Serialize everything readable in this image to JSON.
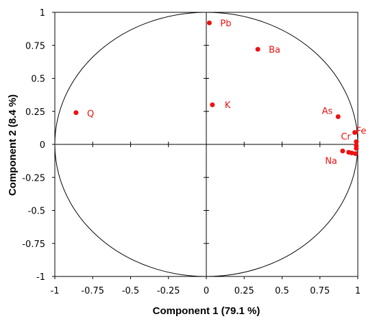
{
  "chart_data": {
    "type": "scatter",
    "xlabel": "Component 1 (79.1 %)",
    "ylabel": "Component 2 (8.4 %)",
    "xlim": [
      -1,
      1
    ],
    "ylim": [
      -1,
      1
    ],
    "x_ticks": [
      "-1",
      "-0.75",
      "-0.5",
      "-0.25",
      "0",
      "0.25",
      "0.5",
      "0.75",
      "1"
    ],
    "y_ticks": [
      "1",
      "0.75",
      "0.5",
      "0.25",
      "0",
      "-0.25",
      "-0.5",
      "-0.75",
      "-1"
    ],
    "grid": false,
    "unit_circle": true,
    "point_color": "#ee1111",
    "points": [
      {
        "label": "Pb",
        "x": 0.02,
        "y": 0.92
      },
      {
        "label": "Ba",
        "x": 0.34,
        "y": 0.72
      },
      {
        "label": "K",
        "x": 0.04,
        "y": 0.3
      },
      {
        "label": "Q",
        "x": -0.86,
        "y": 0.24
      },
      {
        "label": "As",
        "x": 0.87,
        "y": 0.21
      },
      {
        "label": "Fe",
        "x": 0.98,
        "y": 0.09
      },
      {
        "label": "Cr",
        "x": 0.99,
        "y": 0.02
      },
      {
        "label": "",
        "x": 0.99,
        "y": -0.01
      },
      {
        "label": "",
        "x": 0.99,
        "y": -0.03
      },
      {
        "label": "Na",
        "x": 0.9,
        "y": -0.05
      },
      {
        "label": "",
        "x": 0.94,
        "y": -0.06
      },
      {
        "label": "",
        "x": 0.96,
        "y": -0.065
      },
      {
        "label": "",
        "x": 0.985,
        "y": -0.07
      }
    ]
  }
}
